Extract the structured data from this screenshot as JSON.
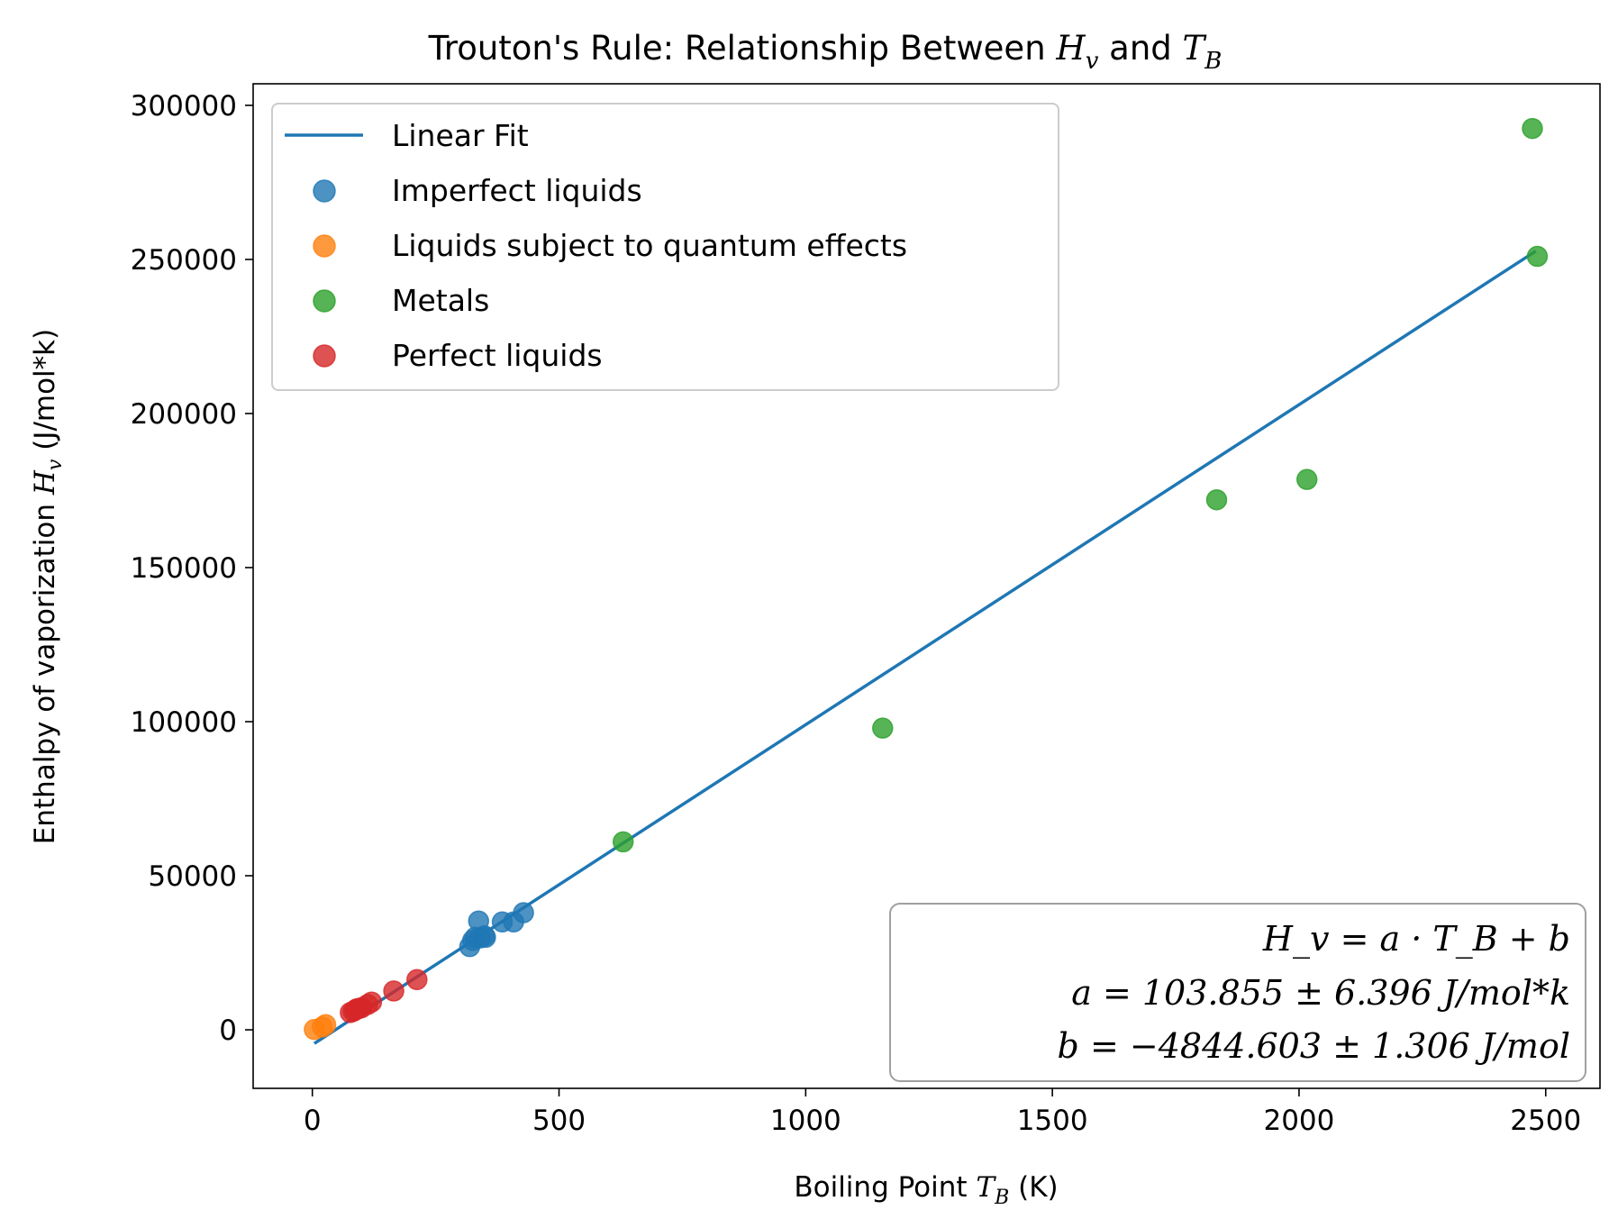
{
  "chart_data": {
    "type": "scatter",
    "title": {
      "prefix": "Trouton's Rule: Relationship Between ",
      "var1": "H",
      "var1_sub": "v",
      "middle": " and ",
      "var2": "T",
      "var2_sub": "B"
    },
    "xlabel": {
      "prefix": "Boiling Point ",
      "var": "T",
      "var_sub": "B",
      "suffix": " (K)"
    },
    "ylabel": {
      "prefix": "Enthalpy of vaporization ",
      "var": "H",
      "var_sub": "v",
      "suffix": " (J/mol*k)"
    },
    "xlim": [
      -120,
      2610
    ],
    "ylim": [
      -19000,
      307000
    ],
    "xticks": [
      0,
      500,
      1000,
      1500,
      2000,
      2500
    ],
    "yticks": [
      0,
      50000,
      100000,
      150000,
      200000,
      250000,
      300000
    ],
    "grid": false,
    "legend_position": "upper left",
    "colors": {
      "line": "#1f77b4",
      "imperfect": "#1f77b4",
      "quantum": "#ff7f0e",
      "metals": "#2ca02c",
      "perfect": "#d62728"
    },
    "line": {
      "name": "Linear Fit",
      "x": [
        4,
        2480
      ],
      "y": [
        -4429,
        252716
      ]
    },
    "series": [
      {
        "name": "Imperfect liquids",
        "color_key": "imperfect",
        "points": [
          [
            319,
            27000
          ],
          [
            325,
            29000
          ],
          [
            330,
            30000
          ],
          [
            337,
            35300
          ],
          [
            340,
            29800
          ],
          [
            349,
            30500
          ],
          [
            351,
            30000
          ],
          [
            385,
            35000
          ],
          [
            408,
            35000
          ],
          [
            428,
            38000
          ]
        ]
      },
      {
        "name": "Liquids subject to quantum effects",
        "color_key": "quantum",
        "points": [
          [
            4,
            100
          ],
          [
            20,
            900
          ],
          [
            27,
            1700
          ]
        ]
      },
      {
        "name": "Metals",
        "color_key": "metals",
        "points": [
          [
            630,
            61000
          ],
          [
            1156,
            97900
          ],
          [
            1833,
            172000
          ],
          [
            2016,
            178600
          ],
          [
            2473,
            292500
          ],
          [
            2483,
            251000
          ]
        ]
      },
      {
        "name": "Perfect liquids",
        "color_key": "perfect",
        "points": [
          [
            77,
            5600
          ],
          [
            83,
            6000
          ],
          [
            87,
            6400
          ],
          [
            90,
            6800
          ],
          [
            94,
            6900
          ],
          [
            100,
            7200
          ],
          [
            112,
            8200
          ],
          [
            120,
            9000
          ],
          [
            165,
            12600
          ],
          [
            212,
            16300
          ]
        ]
      }
    ],
    "annotation": {
      "line1": "H_v = a · T_B + b",
      "line2": "a = 103.855 ± 6.396 J/mol*k",
      "line3": "b = −4844.603 ± 1.306 J/mol"
    }
  }
}
